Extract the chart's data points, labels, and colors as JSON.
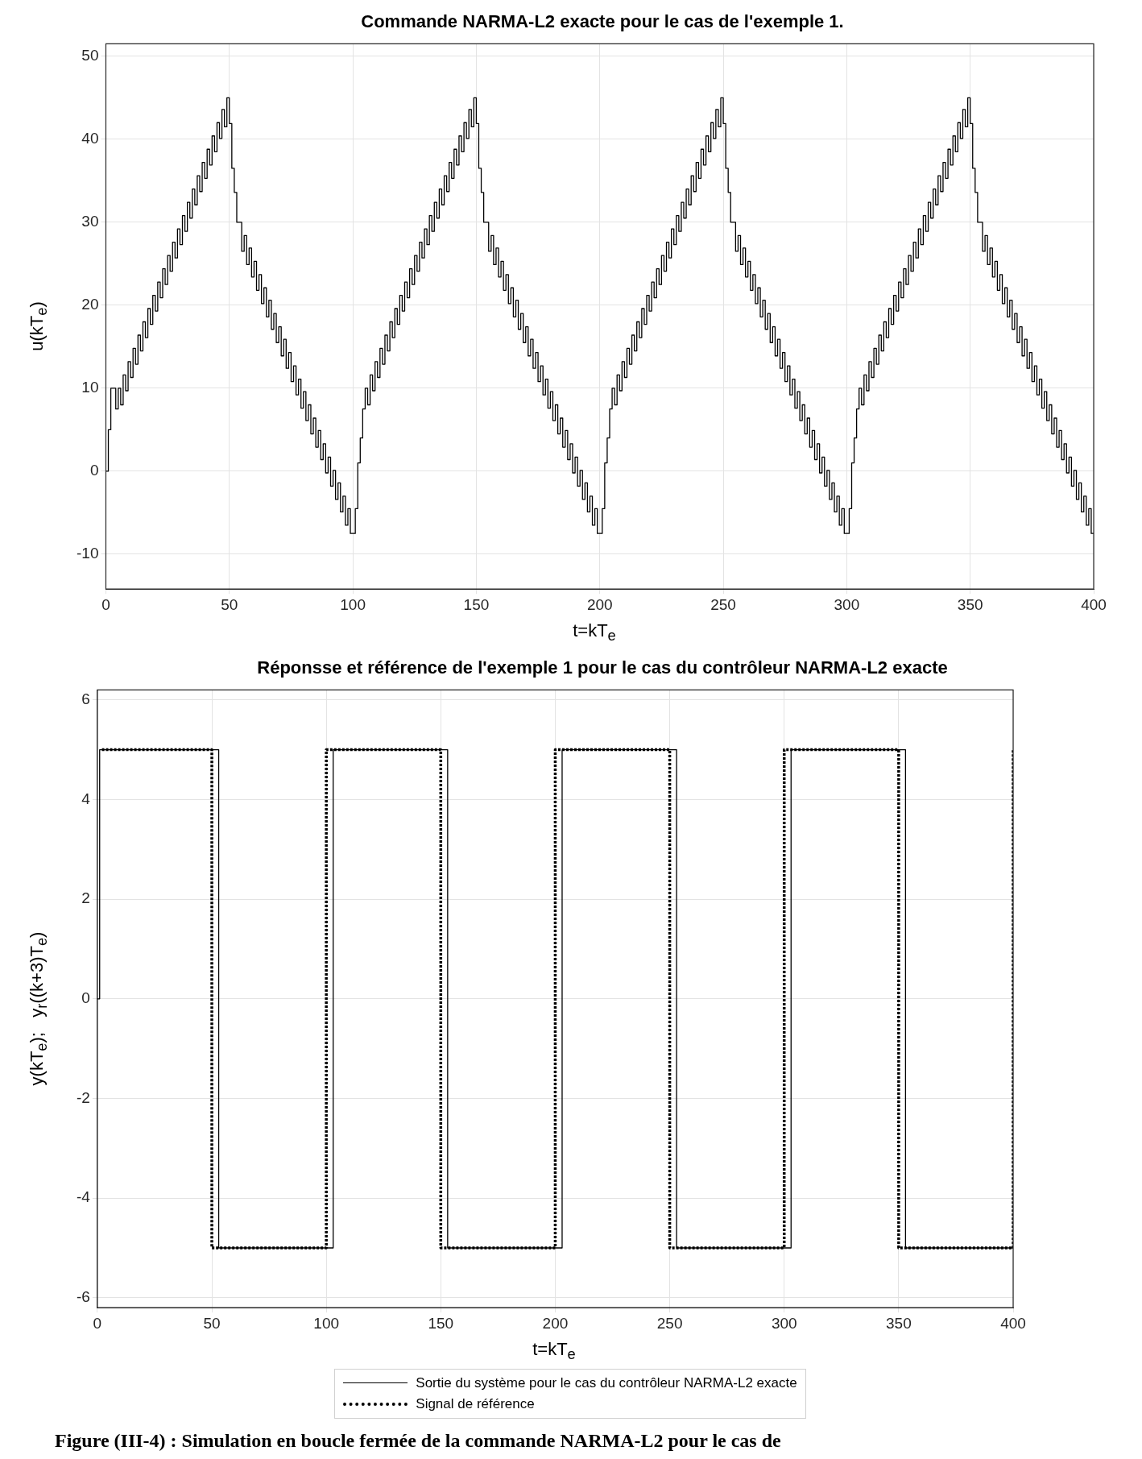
{
  "chart_data": [
    {
      "type": "step",
      "title": "Commande NARMA-L2 exacte pour le cas de l'exemple 1.",
      "xlabel": "t=kT$_{e}$",
      "ylabel": "u(kT$_{e}$)",
      "x": [
        0,
        1,
        2,
        3,
        4,
        5,
        6,
        7,
        8,
        9,
        10,
        11,
        12,
        13,
        14,
        15,
        16,
        17,
        18,
        19,
        20,
        21,
        22,
        23,
        24,
        25,
        26,
        27,
        28,
        29,
        30,
        31,
        32,
        33,
        34,
        35,
        36,
        37,
        38,
        39,
        40,
        41,
        42,
        43,
        44,
        45,
        46,
        47,
        48,
        49,
        50,
        51,
        52,
        53,
        54,
        55,
        56,
        57,
        58,
        59,
        60,
        61,
        62,
        63,
        64,
        65,
        66,
        67,
        68,
        69,
        70,
        71,
        72,
        73,
        74,
        75,
        76,
        77,
        78,
        79,
        80,
        81,
        82,
        83,
        84,
        85,
        86,
        87,
        88,
        89,
        90,
        91,
        92,
        93,
        94,
        95,
        96,
        97,
        98,
        99,
        100,
        101,
        102,
        103,
        104,
        105,
        106,
        107,
        108,
        109,
        110,
        111,
        112,
        113,
        114,
        115,
        116,
        117,
        118,
        119,
        120,
        121,
        122,
        123,
        124,
        125,
        126,
        127,
        128,
        129,
        130,
        131,
        132,
        133,
        134,
        135,
        136,
        137,
        138,
        139,
        140,
        141,
        142,
        143,
        144,
        145,
        146,
        147,
        148,
        149,
        150,
        151,
        152,
        153,
        154,
        155,
        156,
        157,
        158,
        159,
        160,
        161,
        162,
        163,
        164,
        165,
        166,
        167,
        168,
        169,
        170,
        171,
        172,
        173,
        174,
        175,
        176,
        177,
        178,
        179,
        180,
        181,
        182,
        183,
        184,
        185,
        186,
        187,
        188,
        189,
        190,
        191,
        192,
        193,
        194,
        195,
        196,
        197,
        198,
        199,
        200,
        201,
        202,
        203,
        204,
        205,
        206,
        207,
        208,
        209,
        210,
        211,
        212,
        213,
        214,
        215,
        216,
        217,
        218,
        219,
        220,
        221,
        222,
        223,
        224,
        225,
        226,
        227,
        228,
        229,
        230,
        231,
        232,
        233,
        234,
        235,
        236,
        237,
        238,
        239,
        240,
        241,
        242,
        243,
        244,
        245,
        246,
        247,
        248,
        249,
        250,
        251,
        252,
        253,
        254,
        255,
        256,
        257,
        258,
        259,
        260,
        261,
        262,
        263,
        264,
        265,
        266,
        267,
        268,
        269,
        270,
        271,
        272,
        273,
        274,
        275,
        276,
        277,
        278,
        279,
        280,
        281,
        282,
        283,
        284,
        285,
        286,
        287,
        288,
        289,
        290,
        291,
        292,
        293,
        294,
        295,
        296,
        297,
        298,
        299,
        300,
        301,
        302,
        303,
        304,
        305,
        306,
        307,
        308,
        309,
        310,
        311,
        312,
        313,
        314,
        315,
        316,
        317,
        318,
        319,
        320,
        321,
        322,
        323,
        324,
        325,
        326,
        327,
        328,
        329,
        330,
        331,
        332,
        333,
        334,
        335,
        336,
        337,
        338,
        339,
        340,
        341,
        342,
        343,
        344,
        345,
        346,
        347,
        348,
        349,
        350,
        351,
        352,
        353,
        354,
        355,
        356,
        357,
        358,
        359,
        360,
        361,
        362,
        363,
        364,
        365,
        366,
        367,
        368,
        369,
        370,
        371,
        372,
        373,
        374,
        375,
        376,
        377,
        378,
        379,
        380,
        381,
        382,
        383,
        384,
        385,
        386,
        387,
        388,
        389,
        390,
        391,
        392,
        393,
        394,
        395,
        396,
        397,
        398,
        399,
        400
      ],
      "series": [
        {
          "color": "#000000",
          "values": [
            0,
            5,
            10,
            10,
            7.5,
            10,
            8,
            11.6,
            9.7,
            13.2,
            11.3,
            14.8,
            12.9,
            16.4,
            14.5,
            18,
            16.1,
            19.6,
            17.7,
            21.2,
            19.3,
            22.8,
            20.9,
            24.4,
            22.5,
            26,
            24.1,
            27.6,
            25.7,
            29.2,
            27.3,
            30.8,
            28.9,
            32.4,
            30.5,
            34,
            32.1,
            35.6,
            33.7,
            37.2,
            35.3,
            38.8,
            36.9,
            40.4,
            38.5,
            42,
            40.1,
            43.6,
            41.5,
            45,
            41.9,
            36.5,
            33.6,
            30,
            30,
            26.5,
            28.4,
            24.9,
            26.9,
            23.4,
            25.3,
            21.8,
            23.7,
            20.2,
            22.1,
            18.6,
            20.6,
            17.1,
            19,
            15.5,
            17.4,
            13.9,
            15.9,
            12.4,
            14.3,
            10.8,
            12.7,
            9.2,
            11.1,
            7.6,
            9.6,
            6.1,
            8,
            4.5,
            6.4,
            2.9,
            4.9,
            1.4,
            3.3,
            -0.2,
            1.7,
            -1.8,
            0.1,
            -3.4,
            -1.4,
            -4.9,
            -3,
            -6.5,
            -4.5,
            -7.5,
            -7.5,
            -4.5,
            1,
            4,
            7.5,
            10,
            8,
            11.6,
            9.7,
            13.2,
            11.3,
            14.8,
            12.9,
            16.4,
            14.5,
            18,
            16.1,
            19.6,
            17.7,
            21.2,
            19.3,
            22.8,
            20.9,
            24.4,
            22.5,
            26,
            24.1,
            27.6,
            25.7,
            29.2,
            27.3,
            30.8,
            28.9,
            32.4,
            30.5,
            34,
            32.1,
            35.6,
            33.7,
            37.2,
            35.3,
            38.8,
            36.9,
            40.4,
            38.5,
            42,
            40.1,
            43.6,
            41.5,
            45,
            41.9,
            36.5,
            33.6,
            30,
            30,
            26.5,
            28.4,
            24.9,
            26.9,
            23.4,
            25.3,
            21.8,
            23.7,
            20.2,
            22.1,
            18.6,
            20.6,
            17.1,
            19,
            15.5,
            17.4,
            13.9,
            15.9,
            12.4,
            14.3,
            10.8,
            12.7,
            9.2,
            11.1,
            7.6,
            9.6,
            6.1,
            8,
            4.5,
            6.4,
            2.9,
            4.9,
            1.4,
            3.3,
            -0.2,
            1.7,
            -1.8,
            0.1,
            -3.4,
            -1.4,
            -4.9,
            -3,
            -6.5,
            -4.5,
            -7.5,
            -7.5,
            -4.5,
            1,
            4,
            7.5,
            10,
            8,
            11.6,
            9.7,
            13.2,
            11.3,
            14.8,
            12.9,
            16.4,
            14.5,
            18,
            16.1,
            19.6,
            17.7,
            21.2,
            19.3,
            22.8,
            20.9,
            24.4,
            22.5,
            26,
            24.1,
            27.6,
            25.7,
            29.2,
            27.3,
            30.8,
            28.9,
            32.4,
            30.5,
            34,
            32.1,
            35.6,
            33.7,
            37.2,
            35.3,
            38.8,
            36.9,
            40.4,
            38.5,
            42,
            40.1,
            43.6,
            41.5,
            45,
            41.9,
            36.5,
            33.6,
            30,
            30,
            26.5,
            28.4,
            24.9,
            26.9,
            23.4,
            25.3,
            21.8,
            23.7,
            20.2,
            22.1,
            18.6,
            20.6,
            17.1,
            19,
            15.5,
            17.4,
            13.9,
            15.9,
            12.4,
            14.3,
            10.8,
            12.7,
            9.2,
            11.1,
            7.6,
            9.6,
            6.1,
            8,
            4.5,
            6.4,
            2.9,
            4.9,
            1.4,
            3.3,
            -0.2,
            1.7,
            -1.8,
            0.1,
            -3.4,
            -1.4,
            -4.9,
            -3,
            -6.5,
            -4.5,
            -7.5,
            -7.5,
            -4.5,
            1,
            4,
            7.5,
            10,
            8,
            11.6,
            9.7,
            13.2,
            11.3,
            14.8,
            12.9,
            16.4,
            14.5,
            18,
            16.1,
            19.6,
            17.7,
            21.2,
            19.3,
            22.8,
            20.9,
            24.4,
            22.5,
            26,
            24.1,
            27.6,
            25.7,
            29.2,
            27.3,
            30.8,
            28.9,
            32.4,
            30.5,
            34,
            32.1,
            35.6,
            33.7,
            37.2,
            35.3,
            38.8,
            36.9,
            40.4,
            38.5,
            42,
            40.1,
            43.6,
            41.5,
            45,
            41.9,
            36.5,
            33.6,
            30,
            30,
            26.5,
            28.4,
            24.9,
            26.9,
            23.4,
            25.3,
            21.8,
            23.7,
            20.2,
            22.1,
            18.6,
            20.6,
            17.1,
            19,
            15.5,
            17.4,
            13.9,
            15.9,
            12.4,
            14.3,
            10.8,
            12.7,
            9.2,
            11.1,
            7.6,
            9.6,
            6.1,
            8,
            4.5,
            6.4,
            2.9,
            4.9,
            1.4,
            3.3,
            -0.2,
            1.7,
            -1.8,
            0.1,
            -3.4,
            -1.4,
            -4.9,
            -3,
            -6.5,
            -4.5,
            -7.5,
            -7.5
          ]
        }
      ],
      "xlim": [
        0,
        400
      ],
      "xticks": [
        0,
        50,
        100,
        150,
        200,
        250,
        300,
        350,
        400
      ],
      "ylim": [
        -14.2,
        51.5
      ],
      "yticks": [
        -10,
        0,
        10,
        20,
        30,
        40,
        50
      ],
      "grid": true,
      "marker": "none",
      "line_style": "solid"
    },
    {
      "type": "step",
      "title": "Réponsse et référence de l'exemple 1 pour le cas du contrôleur NARMA-L2 exacte",
      "xlabel": "t=kT$_{e}$",
      "ylabel": "y(kT$_{e}$);   y$_{r}$((k+3)T$_{e}$)",
      "series": [
        {
          "name": "Sortie du système pour le cas du contrôleur NARMA-L2 exacte",
          "color": "#000000",
          "line_style": "solid",
          "x": [
            0,
            1,
            53,
            103,
            153,
            203,
            253,
            303,
            353,
            400
          ],
          "values": [
            0,
            5,
            -5,
            5,
            -5,
            5,
            -5,
            5,
            -5,
            -5
          ]
        },
        {
          "name": "Signal de référence",
          "color": "#000000",
          "line_style": "dotted",
          "x": [
            2,
            50,
            100,
            150,
            200,
            250,
            300,
            350,
            400
          ],
          "values": [
            5,
            -5,
            5,
            -5,
            5,
            -5,
            5,
            -5,
            5
          ]
        }
      ],
      "xlim": [
        0,
        400
      ],
      "xticks": [
        0,
        50,
        100,
        150,
        200,
        250,
        300,
        350,
        400
      ],
      "ylim": [
        -6.2,
        6.2
      ],
      "yticks": [
        -6,
        -4,
        -2,
        0,
        2,
        4,
        6
      ],
      "grid": true,
      "marker": "none",
      "legend": "bottom",
      "annotations": [
        "Figure (III-4) : Simulation en boucle fermée de la commande NARMA-L2 pour le cas de"
      ]
    }
  ]
}
